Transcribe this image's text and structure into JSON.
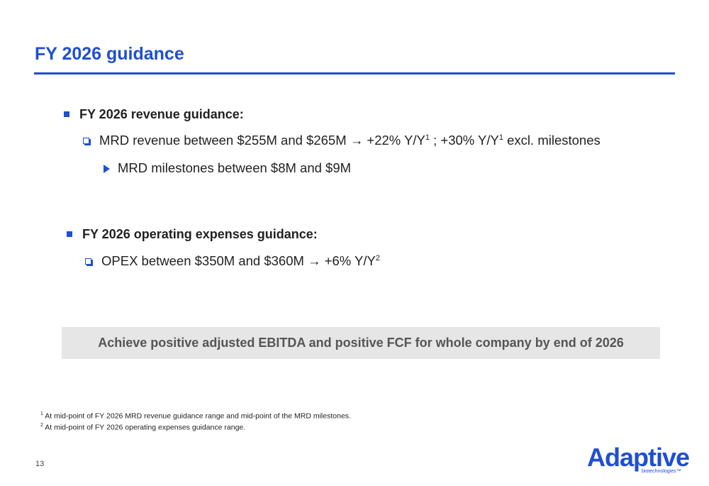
{
  "header": {
    "title": "FY 2026 guidance"
  },
  "sections": [
    {
      "heading": "FY 2026 revenue guidance:",
      "items": [
        {
          "parts": [
            {
              "text": "MRD revenue between $255M and $265M → +22% Y/Y"
            },
            {
              "sup": "1"
            },
            {
              "text": " ; +30% Y/Y"
            },
            {
              "sup": "1"
            },
            {
              "text": " excl. milestones"
            }
          ],
          "subitems": [
            "MRD milestones between $8M and $9M"
          ]
        }
      ]
    },
    {
      "heading": "FY 2026 operating expenses guidance:",
      "items": [
        {
          "parts": [
            {
              "text": "OPEX between $350M and $360M → +6% Y/Y"
            },
            {
              "sup": "2"
            }
          ],
          "subitems": []
        }
      ]
    }
  ],
  "banner": "Achieve positive adjusted EBITDA and positive FCF for whole company by end of 2026",
  "footnotes": [
    {
      "mark": "1",
      "text": "At mid-point of FY 2026 MRD revenue guidance range and mid-point of the MRD milestones."
    },
    {
      "mark": "2",
      "text": "At mid-point of FY 2026 operating expenses guidance range."
    }
  ],
  "page_number": "13",
  "logo": {
    "name": "Adaptive",
    "tagline": "biotechnologies™"
  }
}
